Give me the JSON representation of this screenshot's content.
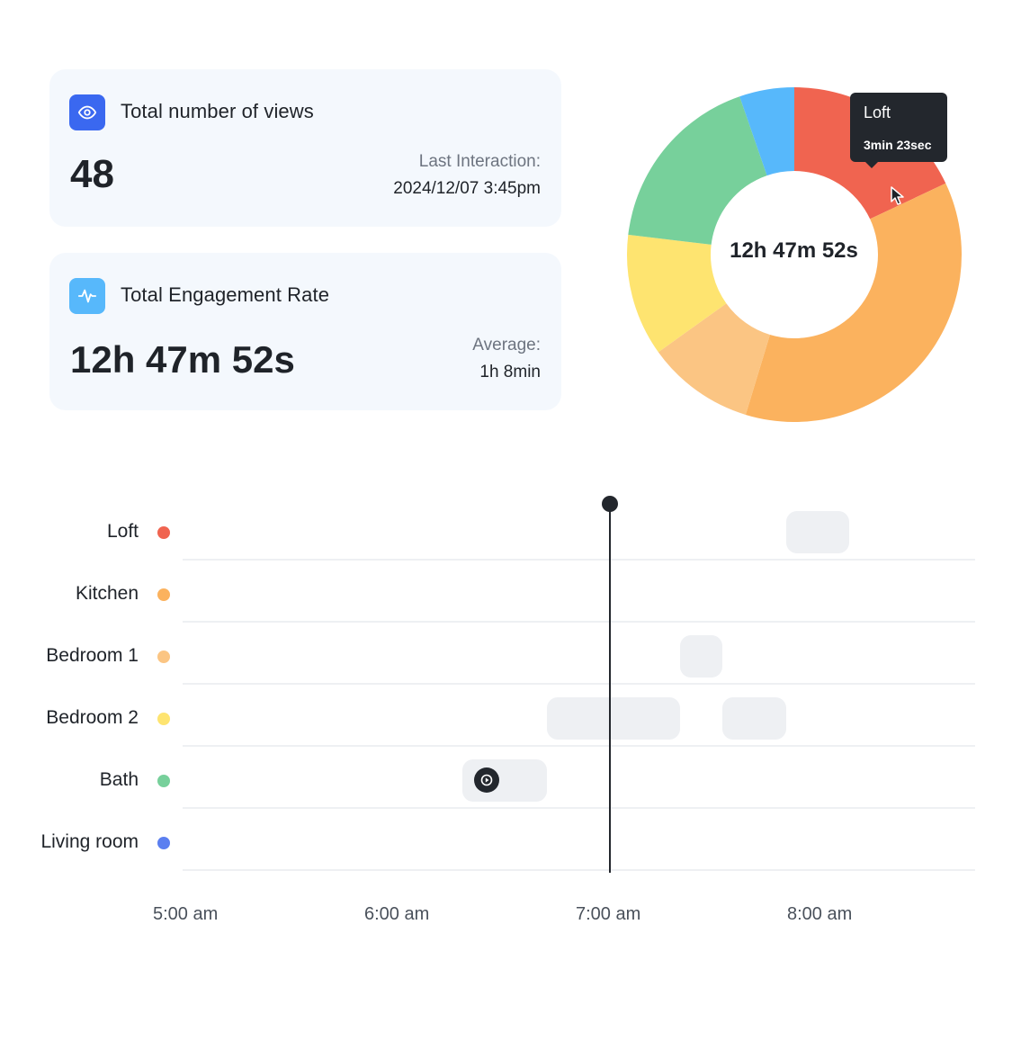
{
  "cards": {
    "views": {
      "icon": "eye-icon",
      "icon_color": "#3a68f0",
      "title": "Total number of views",
      "value": "48",
      "meta_label": "Last Interaction:",
      "meta_value": "2024/12/07 3:45pm"
    },
    "engagement": {
      "icon": "activity-pulse-icon",
      "icon_color": "#57b8fb",
      "title": "Total Engagement Rate",
      "value": "12h 47m 52s",
      "meta_label": "Average:",
      "meta_value": "1h 8min"
    }
  },
  "donut": {
    "center_label": "12h 47m 52s",
    "slices": [
      {
        "room": "Loft",
        "color": "#f06450",
        "fraction": 0.18
      },
      {
        "room": "Kitchen",
        "color": "#fbb25e",
        "fraction": 0.367
      },
      {
        "room": "Bedroom 1",
        "color": "#fbc583",
        "fraction": 0.104
      },
      {
        "room": "Bedroom 2",
        "color": "#fee470",
        "fraction": 0.118
      },
      {
        "room": "Bath",
        "color": "#77d09b",
        "fraction": 0.178
      },
      {
        "room": "Living room",
        "color": "#57b8fb",
        "fraction": 0.053
      }
    ],
    "tooltip": {
      "label": "Loft",
      "value": "3min 23sec"
    }
  },
  "timeline": {
    "rows": [
      {
        "label": "Loft",
        "color": "#f06450"
      },
      {
        "label": "Kitchen",
        "color": "#fbb25e"
      },
      {
        "label": "Bedroom 1",
        "color": "#fbc583"
      },
      {
        "label": "Bedroom 2",
        "color": "#fee470"
      },
      {
        "label": "Bath",
        "color": "#77d09b"
      },
      {
        "label": "Living room",
        "color": "#5b7ff0"
      }
    ],
    "segments": [
      {
        "row": 0,
        "start": "7:50 am",
        "end": "8:08 am"
      },
      {
        "row": 2,
        "start": "7:20 am",
        "end": "7:32 am"
      },
      {
        "row": 3,
        "start": "6:42 am",
        "end": "7:20 am"
      },
      {
        "row": 3,
        "start": "7:32 am",
        "end": "7:50 am"
      },
      {
        "row": 4,
        "start": "6:18 am",
        "end": "6:42 am",
        "playing": true
      }
    ],
    "current_time": "7:00 am",
    "x_ticks": [
      "5:00 am",
      "6:00 am",
      "7:00 am",
      "8:00 am"
    ]
  }
}
